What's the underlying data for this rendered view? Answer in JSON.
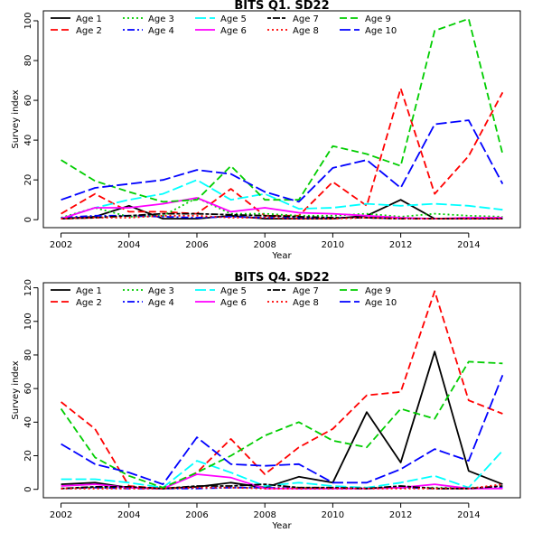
{
  "chart_data": [
    {
      "type": "line",
      "title": "BITS Q1. SD22",
      "xlabel": "Year",
      "ylabel": "Survey index",
      "xlim": [
        2002,
        2015
      ],
      "ylim": [
        0,
        100
      ],
      "xticks": [
        2002,
        2004,
        2006,
        2008,
        2010,
        2012,
        2014
      ],
      "yticks": [
        0,
        20,
        40,
        60,
        80,
        100
      ],
      "x": [
        2002,
        2003,
        2004,
        2005,
        2006,
        2007,
        2008,
        2009,
        2010,
        2011,
        2012,
        2013,
        2014,
        2015
      ],
      "legend_position": "top",
      "series": [
        {
          "name": "Age 1",
          "color": "#000000",
          "dash": "solid",
          "values": [
            0.5,
            1.5,
            7,
            0.5,
            0.5,
            2,
            0.5,
            0.5,
            0.5,
            2,
            10,
            0.5,
            0.5,
            0.5
          ]
        },
        {
          "name": "Age 2",
          "color": "#FF0000",
          "dash": "dashed",
          "values": [
            3,
            13,
            4,
            4,
            3,
            15.5,
            2,
            2,
            19,
            7,
            66,
            13,
            32,
            64
          ]
        },
        {
          "name": "Age 3",
          "color": "#00CD00",
          "dash": "dotted",
          "values": [
            1,
            6,
            1.5,
            2,
            11,
            3,
            3,
            2,
            2,
            3,
            1.5,
            3,
            2,
            1.5
          ]
        },
        {
          "name": "Age 4",
          "color": "#0000FF",
          "dash": "dotdash",
          "values": [
            1,
            2,
            2,
            1.5,
            1,
            1.5,
            1,
            1,
            1,
            1,
            0.5,
            0.5,
            0.5,
            1
          ]
        },
        {
          "name": "Age 5",
          "color": "#00FFFF",
          "dash": "longdash",
          "values": [
            0.5,
            6,
            10,
            13,
            20,
            10,
            13,
            5.5,
            6,
            8,
            7,
            8,
            7,
            5
          ]
        },
        {
          "name": "Age 6",
          "color": "#FF00FF",
          "dash": "solid",
          "values": [
            0.5,
            6,
            6,
            8,
            11,
            4,
            6,
            3.5,
            3,
            2,
            1,
            0.5,
            1,
            1
          ]
        },
        {
          "name": "Age 7",
          "color": "#000000",
          "dash": "twodash",
          "values": [
            0.5,
            1,
            2,
            3,
            3,
            2.5,
            2,
            1.5,
            1,
            1,
            0.5,
            0.5,
            0.5,
            0.5
          ]
        },
        {
          "name": "Age 8",
          "color": "#FF0000",
          "dash": "dotted",
          "values": [
            0.5,
            1,
            1,
            2,
            2,
            1,
            1,
            0.5,
            0.5,
            1,
            0.5,
            0.5,
            0.5,
            0.5
          ]
        },
        {
          "name": "Age 9",
          "color": "#00CD00",
          "dash": "dashed",
          "values": [
            30,
            19.5,
            14,
            9,
            10,
            27,
            10,
            10,
            37,
            33,
            27,
            95,
            101,
            33
          ]
        },
        {
          "name": "Age 10",
          "color": "#0000FF",
          "dash": "longdash",
          "values": [
            10,
            16,
            18,
            20,
            25,
            23,
            14,
            9,
            26,
            30,
            16,
            48,
            50,
            18
          ]
        }
      ]
    },
    {
      "type": "line",
      "title": "BITS Q4. SD22",
      "xlabel": "Year",
      "ylabel": "Survey index",
      "xlim": [
        2002,
        2015
      ],
      "ylim": [
        0,
        120
      ],
      "xticks": [
        2002,
        2004,
        2006,
        2008,
        2010,
        2012,
        2014
      ],
      "yticks": [
        0,
        20,
        40,
        60,
        80,
        100,
        120
      ],
      "x": [
        2002,
        2003,
        2004,
        2005,
        2006,
        2007,
        2008,
        2009,
        2010,
        2011,
        2012,
        2013,
        2014,
        2015
      ],
      "legend_position": "top",
      "series": [
        {
          "name": "Age 1",
          "color": "#000000",
          "dash": "solid",
          "values": [
            3,
            4,
            1,
            0.5,
            1.5,
            4,
            1,
            7.5,
            4,
            46,
            16,
            82,
            11,
            3
          ]
        },
        {
          "name": "Age 2",
          "color": "#FF0000",
          "dash": "dashed",
          "values": [
            52,
            36,
            2,
            0.5,
            10,
            30,
            9,
            25,
            36,
            56,
            58,
            118,
            53,
            45
          ]
        },
        {
          "name": "Age 3",
          "color": "#00CD00",
          "dash": "dotted",
          "values": [
            0.5,
            1,
            1,
            0.5,
            1,
            1,
            1,
            1,
            1,
            1,
            1,
            1,
            1,
            1
          ]
        },
        {
          "name": "Age 4",
          "color": "#0000FF",
          "dash": "dotdash",
          "values": [
            0.5,
            1,
            0.5,
            0.5,
            0.5,
            1,
            1,
            0.5,
            0.5,
            0.5,
            1,
            0.5,
            0.5,
            1
          ]
        },
        {
          "name": "Age 5",
          "color": "#00FFFF",
          "dash": "longdash",
          "values": [
            6,
            6,
            4,
            1,
            17,
            10,
            2,
            4,
            2,
            1,
            4,
            8,
            1,
            23
          ]
        },
        {
          "name": "Age 6",
          "color": "#FF00FF",
          "dash": "solid",
          "values": [
            2,
            3,
            1,
            0.5,
            9,
            7,
            0.5,
            0.5,
            0.5,
            0.5,
            1,
            3,
            0.5,
            0.5
          ]
        },
        {
          "name": "Age 7",
          "color": "#000000",
          "dash": "twodash",
          "values": [
            0.5,
            1.5,
            1.5,
            0.5,
            2,
            2,
            3,
            1,
            1,
            0.5,
            2,
            0.5,
            0.5,
            2
          ]
        },
        {
          "name": "Age 8",
          "color": "#FF0000",
          "dash": "dotted",
          "values": [
            0.5,
            0.5,
            0.5,
            0.5,
            1,
            1,
            0.5,
            0.5,
            0.5,
            0.5,
            0.5,
            0.5,
            0.5,
            3
          ]
        },
        {
          "name": "Age 9",
          "color": "#00CD00",
          "dash": "dashed",
          "values": [
            48,
            19,
            8,
            1,
            10,
            20,
            32,
            40,
            29,
            25,
            48,
            42,
            76,
            75
          ]
        },
        {
          "name": "Age 10",
          "color": "#0000FF",
          "dash": "longdash",
          "values": [
            27,
            15,
            10,
            3,
            31,
            15,
            14,
            15,
            4,
            4,
            12,
            24,
            17,
            68
          ]
        }
      ]
    }
  ]
}
